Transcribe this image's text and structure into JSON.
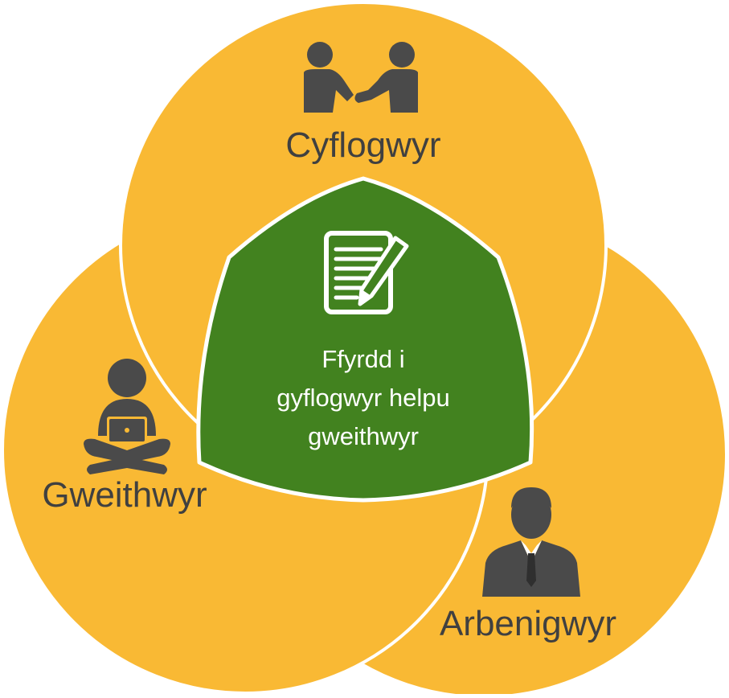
{
  "diagram": {
    "type": "venn",
    "colors": {
      "circle_fill": "#F9B934",
      "circle_stroke": "#ffffff",
      "center_fill": "#42821F",
      "icon": "#4a4a4a"
    },
    "sets": [
      {
        "id": "employers",
        "label": "Cyflogwyr",
        "icon": "handshake-icon"
      },
      {
        "id": "workers",
        "label": "Gweithwyr",
        "icon": "person-laptop-icon"
      },
      {
        "id": "experts",
        "label": "Arbenigwyr",
        "icon": "businessman-icon"
      }
    ],
    "center": {
      "icon": "document-pen-icon",
      "lines": [
        "Ffyrdd i",
        "gyflogwyr helpu",
        "gweithwyr"
      ]
    }
  }
}
